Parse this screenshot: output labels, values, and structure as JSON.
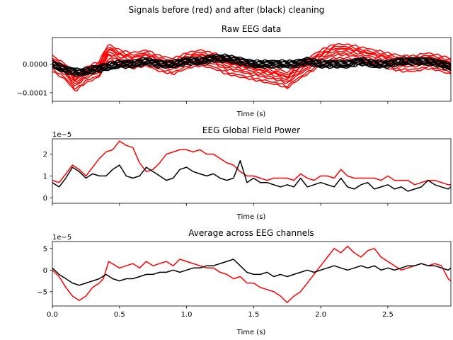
{
  "figure": {
    "suptitle": "Signals before (red) and after (black) cleaning"
  },
  "colors": {
    "before": "#ff0000",
    "after": "#000000"
  },
  "chart_data": [
    {
      "type": "line",
      "title": "Raw EEG data",
      "xlabel": "Time (s)",
      "ylabel": "",
      "offset_text": "",
      "xlim": [
        0,
        2.97
      ],
      "ylim": [
        -0.00013,
        9.35e-05
      ],
      "x_ticks": [
        0.0,
        0.5,
        1.0,
        1.5,
        2.0,
        2.5
      ],
      "x_tick_labels_visible": false,
      "y_ticks": [
        0.0,
        -0.0001
      ],
      "y_tick_labels": [
        "0.0000",
        "−0.0001"
      ],
      "channel_offsets": {
        "before": [
          1.2e-05,
          -8e-06,
          2.2e-05,
          -1.8e-05,
          5e-06,
          -2.5e-05,
          3e-05,
          -2e-06,
          1.6e-05
        ],
        "after": [
          6e-06,
          -4e-06,
          1e-05,
          -9e-06,
          2e-06,
          -1.2e-05,
          1.3e-05,
          0.0,
          8e-06,
          -6e-06
        ]
      },
      "series": [
        {
          "role": "before",
          "x": [
            0.0,
            0.1,
            0.17,
            0.25,
            0.35,
            0.38,
            0.42,
            0.5,
            0.6,
            0.7,
            0.8,
            0.9,
            1.0,
            1.1,
            1.2,
            1.3,
            1.4,
            1.5,
            1.6,
            1.7,
            1.75,
            1.8,
            1.9,
            2.0,
            2.1,
            2.2,
            2.3,
            2.4,
            2.5,
            2.6,
            2.7,
            2.8,
            2.9,
            2.97
          ],
          "y": [
            0.0,
            -3e-05,
            -7e-05,
            -4e-05,
            -2e-05,
            1e-05,
            4e-05,
            2e-05,
            1e-05,
            2e-05,
            0.0,
            -1e-05,
            1e-05,
            2e-05,
            1e-05,
            -1e-05,
            -2e-05,
            -3e-05,
            -4e-05,
            -5e-05,
            -6e-05,
            -4e-05,
            -1e-05,
            2e-05,
            4e-05,
            4e-05,
            3e-05,
            2e-05,
            1e-05,
            0.0,
            0.0,
            1e-05,
            0.0,
            -1e-05
          ]
        },
        {
          "role": "after",
          "x": [
            0.0,
            0.1,
            0.2,
            0.3,
            0.4,
            0.5,
            0.6,
            0.7,
            0.8,
            0.9,
            1.0,
            1.1,
            1.2,
            1.3,
            1.4,
            1.5,
            1.6,
            1.7,
            1.8,
            1.9,
            2.0,
            2.1,
            2.2,
            2.3,
            2.4,
            2.5,
            2.6,
            2.7,
            2.8,
            2.9,
            2.97
          ],
          "y": [
            0.0,
            -2e-05,
            -3e-05,
            -2e-05,
            -1e-05,
            0.0,
            0.0,
            1e-05,
            0.0,
            0.0,
            1e-05,
            1e-05,
            2e-05,
            2e-05,
            1e-05,
            0.0,
            0.0,
            0.0,
            0.0,
            1e-05,
            0.0,
            0.0,
            0.0,
            1e-05,
            0.0,
            0.0,
            1e-05,
            1e-05,
            1e-05,
            0.0,
            -1e-05
          ]
        }
      ]
    },
    {
      "type": "line",
      "title": "EEG Global Field Power",
      "xlabel": "Time (s)",
      "ylabel": "",
      "offset_text": "1e−5",
      "xlim": [
        0,
        2.97
      ],
      "ylim": [
        -0.25,
        2.7
      ],
      "x_ticks": [
        0.0,
        0.5,
        1.0,
        1.5,
        2.0,
        2.5
      ],
      "x_tick_labels_visible": false,
      "y_ticks": [
        0,
        1,
        2
      ],
      "y_tick_labels": [
        "0",
        "1",
        "2"
      ],
      "series": [
        {
          "role": "before",
          "x": [
            0.0,
            0.05,
            0.1,
            0.15,
            0.2,
            0.25,
            0.3,
            0.35,
            0.4,
            0.45,
            0.5,
            0.55,
            0.6,
            0.65,
            0.7,
            0.75,
            0.8,
            0.85,
            0.9,
            0.95,
            1.0,
            1.05,
            1.1,
            1.15,
            1.2,
            1.25,
            1.3,
            1.35,
            1.4,
            1.45,
            1.5,
            1.55,
            1.6,
            1.65,
            1.7,
            1.75,
            1.8,
            1.85,
            1.9,
            1.95,
            2.0,
            2.05,
            2.1,
            2.15,
            2.2,
            2.25,
            2.3,
            2.35,
            2.4,
            2.45,
            2.5,
            2.55,
            2.6,
            2.65,
            2.7,
            2.75,
            2.8,
            2.85,
            2.9,
            2.95,
            2.97
          ],
          "y": [
            0.8,
            0.7,
            1.1,
            1.5,
            1.3,
            1.0,
            1.4,
            1.8,
            2.1,
            2.2,
            2.6,
            2.4,
            2.3,
            1.6,
            1.2,
            1.3,
            1.6,
            2.0,
            2.1,
            2.2,
            2.2,
            2.1,
            2.2,
            2.0,
            2.0,
            1.8,
            1.6,
            1.5,
            1.2,
            1.0,
            1.0,
            0.9,
            0.8,
            0.9,
            0.9,
            0.9,
            0.8,
            1.1,
            0.9,
            0.8,
            1.0,
            1.0,
            0.9,
            1.3,
            1.0,
            0.9,
            0.9,
            0.9,
            0.9,
            0.8,
            1.0,
            0.8,
            0.8,
            0.8,
            0.6,
            0.7,
            0.8,
            0.8,
            0.7,
            0.6,
            0.6
          ]
        },
        {
          "role": "after",
          "x": [
            0.0,
            0.05,
            0.1,
            0.15,
            0.2,
            0.25,
            0.3,
            0.35,
            0.4,
            0.45,
            0.5,
            0.55,
            0.6,
            0.65,
            0.7,
            0.75,
            0.8,
            0.85,
            0.9,
            0.95,
            1.0,
            1.05,
            1.1,
            1.15,
            1.2,
            1.25,
            1.3,
            1.35,
            1.4,
            1.45,
            1.5,
            1.55,
            1.6,
            1.65,
            1.7,
            1.75,
            1.8,
            1.85,
            1.9,
            1.95,
            2.0,
            2.05,
            2.1,
            2.15,
            2.2,
            2.25,
            2.3,
            2.35,
            2.4,
            2.45,
            2.5,
            2.55,
            2.6,
            2.65,
            2.7,
            2.75,
            2.8,
            2.85,
            2.9,
            2.95,
            2.97
          ],
          "y": [
            0.7,
            0.5,
            0.9,
            1.4,
            1.2,
            0.9,
            1.1,
            1.0,
            1.0,
            1.3,
            1.5,
            1.0,
            0.9,
            1.0,
            1.4,
            1.2,
            1.0,
            0.8,
            0.9,
            1.3,
            1.4,
            1.2,
            1.1,
            1.0,
            1.1,
            0.9,
            0.8,
            0.9,
            1.7,
            0.7,
            0.9,
            0.7,
            0.7,
            0.6,
            0.5,
            0.6,
            0.5,
            0.9,
            0.5,
            0.6,
            0.7,
            0.6,
            0.5,
            0.9,
            0.5,
            0.4,
            0.6,
            0.7,
            0.4,
            0.5,
            0.6,
            0.4,
            0.5,
            0.3,
            0.4,
            0.5,
            0.8,
            0.6,
            0.5,
            0.4,
            0.5
          ]
        }
      ]
    },
    {
      "type": "line",
      "title": "Average across EEG channels",
      "xlabel": "Time (s)",
      "ylabel": "",
      "offset_text": "1e−5",
      "xlim": [
        0,
        2.97
      ],
      "ylim": [
        -8.3,
        6.6
      ],
      "x_ticks": [
        0.0,
        0.5,
        1.0,
        1.5,
        2.0,
        2.5
      ],
      "x_tick_labels": [
        "0.0",
        "0.5",
        "1.0",
        "1.5",
        "2.0",
        "2.5"
      ],
      "x_tick_labels_visible": true,
      "y_ticks": [
        5,
        0,
        -5
      ],
      "y_tick_labels": [
        "5",
        "0",
        "−5"
      ],
      "series": [
        {
          "role": "before",
          "x": [
            0.0,
            0.05,
            0.1,
            0.15,
            0.2,
            0.25,
            0.3,
            0.35,
            0.38,
            0.42,
            0.5,
            0.55,
            0.6,
            0.65,
            0.7,
            0.75,
            0.8,
            0.85,
            0.9,
            0.95,
            1.0,
            1.05,
            1.1,
            1.15,
            1.2,
            1.25,
            1.3,
            1.35,
            1.4,
            1.45,
            1.5,
            1.55,
            1.6,
            1.65,
            1.7,
            1.75,
            1.8,
            1.85,
            1.9,
            1.95,
            2.0,
            2.05,
            2.1,
            2.15,
            2.2,
            2.25,
            2.3,
            2.35,
            2.4,
            2.45,
            2.5,
            2.55,
            2.6,
            2.65,
            2.7,
            2.75,
            2.8,
            2.85,
            2.9,
            2.95,
            2.97
          ],
          "y": [
            0.0,
            -1.5,
            -4.0,
            -6.0,
            -7.0,
            -6.0,
            -4.0,
            -3.0,
            -2.0,
            2.0,
            0.5,
            1.0,
            1.5,
            0.5,
            2.0,
            1.0,
            1.5,
            2.0,
            1.0,
            2.5,
            2.0,
            1.5,
            1.0,
            0.5,
            0.5,
            -0.5,
            -1.0,
            -2.0,
            -1.5,
            -3.0,
            -3.0,
            -4.0,
            -4.5,
            -5.0,
            -6.0,
            -7.5,
            -6.0,
            -5.0,
            -3.0,
            -1.0,
            1.0,
            3.0,
            5.0,
            4.0,
            5.5,
            4.0,
            3.0,
            4.5,
            5.0,
            3.0,
            2.0,
            1.0,
            0.0,
            0.5,
            1.0,
            1.5,
            1.0,
            1.5,
            1.0,
            -2.0,
            -2.5
          ]
        },
        {
          "role": "after",
          "x": [
            0.0,
            0.05,
            0.1,
            0.15,
            0.2,
            0.25,
            0.3,
            0.35,
            0.4,
            0.45,
            0.5,
            0.55,
            0.6,
            0.65,
            0.7,
            0.75,
            0.8,
            0.85,
            0.9,
            0.95,
            1.0,
            1.05,
            1.1,
            1.15,
            1.2,
            1.25,
            1.3,
            1.35,
            1.4,
            1.45,
            1.5,
            1.55,
            1.6,
            1.65,
            1.7,
            1.75,
            1.8,
            1.85,
            1.9,
            1.95,
            2.0,
            2.05,
            2.1,
            2.15,
            2.2,
            2.25,
            2.3,
            2.35,
            2.4,
            2.45,
            2.5,
            2.55,
            2.6,
            2.65,
            2.7,
            2.75,
            2.8,
            2.85,
            2.9,
            2.95,
            2.97
          ],
          "y": [
            0.5,
            -1.0,
            -2.0,
            -3.0,
            -3.5,
            -3.0,
            -2.5,
            -2.0,
            -1.0,
            -2.0,
            -2.5,
            -2.0,
            -2.0,
            -1.5,
            -1.0,
            -1.0,
            -0.5,
            -0.5,
            0.0,
            -0.5,
            0.0,
            0.5,
            0.5,
            1.0,
            1.0,
            1.5,
            2.0,
            2.5,
            1.0,
            -0.5,
            -1.0,
            -1.0,
            -0.5,
            -1.5,
            -1.0,
            -1.5,
            -1.0,
            -0.5,
            0.0,
            -0.5,
            0.0,
            0.5,
            1.0,
            0.5,
            0.0,
            0.5,
            1.0,
            0.5,
            1.0,
            0.0,
            0.5,
            0.0,
            0.5,
            1.0,
            1.0,
            1.5,
            1.0,
            1.0,
            0.5,
            0.0,
            0.5
          ]
        }
      ]
    }
  ]
}
